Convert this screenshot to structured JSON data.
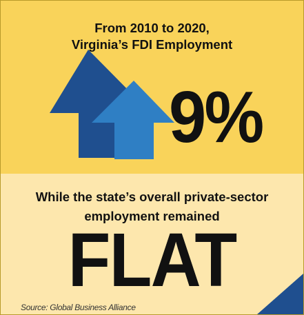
{
  "headline": {
    "line1": "From 2010 to 2020,",
    "line2": "Virginia’s FDI Employment"
  },
  "stat": {
    "value": "9%",
    "direction_icon": "up-arrow-icon"
  },
  "subhead": {
    "line1": "While the state’s overall private-sector",
    "line2": "employment remained"
  },
  "big_word": "FLAT",
  "source": "Source: Global Business Alliance",
  "colors": {
    "top_bg": "#f9d35a",
    "bottom_bg": "#fde7ad",
    "arrow_dark": "#1f4f8f",
    "arrow_light": "#2f7fc4",
    "text": "#111111"
  }
}
